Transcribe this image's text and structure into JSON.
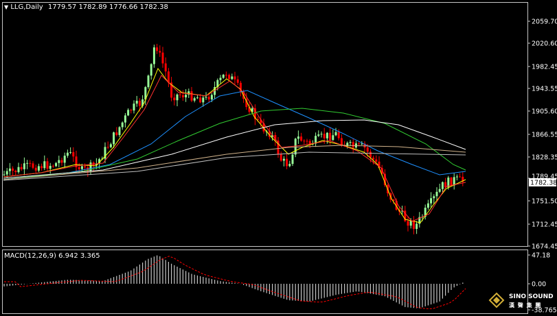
{
  "main_header": {
    "arrow": "▼",
    "symbol": "LLG,Daily",
    "ohlc": "1779.57 1782.89 1776.66 1782.38"
  },
  "price_axis": {
    "ticks": [
      "2059.70",
      "2020.60",
      "1982.45",
      "1943.55",
      "1905.60",
      "1866.55",
      "1828.35",
      "1789.45",
      "1751.50",
      "1712.45",
      "1674.45"
    ],
    "current_price": "1782.38"
  },
  "macd_header": {
    "label": "MACD(12,26,9) 6.942 3.365"
  },
  "macd_axis": {
    "ticks": [
      "47.18",
      "0.00",
      "-38.765"
    ]
  },
  "logo": {
    "name": "SINO SOUND",
    "chinese": "漢 聲 集 團"
  },
  "colors": {
    "background": "#000000",
    "frame": "#c8c8c8",
    "bull_candle": "#98fb98",
    "bear_candle": "#ff0000",
    "ma_fast": "#ffff00",
    "ma_mid": "#ff3030",
    "ma_blue": "#1e90ff",
    "ma_green": "#32cd32",
    "ma_white": "#ffffff",
    "ma_tan": "#d2b48c",
    "ma_gray": "#c0c0c0",
    "macd_hist": "#c8c8c8",
    "macd_signal": "#ff0000"
  }
}
